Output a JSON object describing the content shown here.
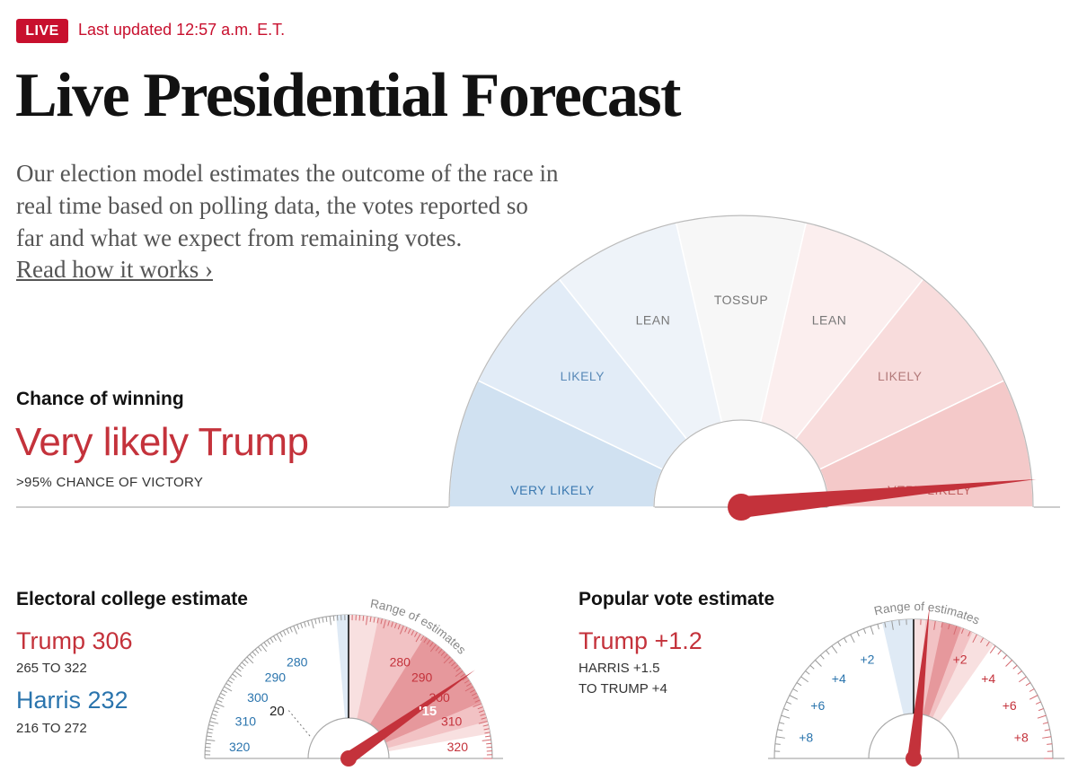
{
  "header": {
    "live_label": "LIVE",
    "updated_text": "Last updated 12:57 a.m. E.T.",
    "title": "Live Presidential Forecast",
    "description": [
      "Our election model estimates the outcome of the race in",
      "real time based on polling data, the votes reported so",
      "far and what we expect from remaining votes."
    ],
    "read_more": "Read how it works ›"
  },
  "chance": {
    "heading": "Chance of winning",
    "verdict": "Very likely Trump",
    "subtext": ">95% CHANCE OF VICTORY",
    "segments": [
      {
        "label": "VERY LIKELY",
        "fill": "#d0e1f1",
        "text_color": "#3a78b0"
      },
      {
        "label": "LIKELY",
        "fill": "#e2ecf7",
        "text_color": "#5a8ab8"
      },
      {
        "label": "LEAN",
        "fill": "#eef3f9",
        "text_color": "#777777"
      },
      {
        "label": "TOSSUP",
        "fill": "#f7f7f7",
        "text_color": "#777777"
      },
      {
        "label": "LEAN",
        "fill": "#fbeeee",
        "text_color": "#777777"
      },
      {
        "label": "LIKELY",
        "fill": "#f8dcdc",
        "text_color": "#b37a7a"
      },
      {
        "label": "VERY LIKELY",
        "fill": "#f4c9c9",
        "text_color": "#c06060"
      }
    ],
    "needle_percent": 97
  },
  "electoral": {
    "heading": "Electoral college estimate",
    "trump_label": "Trump 306",
    "trump_range": "265 TO 322",
    "harris_label": "Harris 232",
    "harris_range": "216 TO 272",
    "range_caption": "Range of estimates",
    "left_ticks": [
      "280",
      "290",
      "300",
      "310",
      "320"
    ],
    "right_ticks": [
      "280",
      "290",
      "300",
      "310",
      "320"
    ],
    "marker_label": "20",
    "marker_label_right": "'15"
  },
  "popular": {
    "heading": "Popular vote estimate",
    "trump_label": "Trump +1.2",
    "range_line1": "HARRIS +1.5",
    "range_line2": "TO TRUMP +4",
    "range_caption": "Range of estimates",
    "left_ticks": [
      "+2",
      "+4",
      "+6",
      "+8"
    ],
    "right_ticks": [
      "+2",
      "+4",
      "+6",
      "+8"
    ]
  },
  "colors": {
    "red": "#c4323b",
    "blue": "#2a74ad",
    "badge": "#c8102e"
  }
}
